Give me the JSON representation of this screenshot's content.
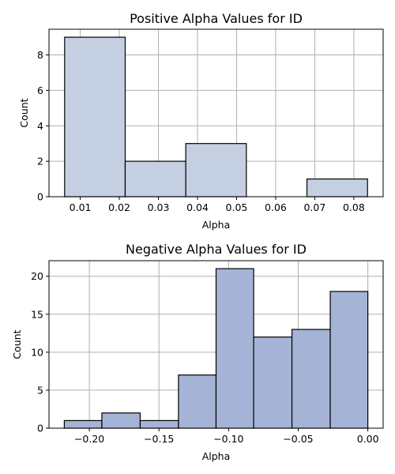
{
  "chart_data": [
    {
      "type": "bar",
      "title": "Positive Alpha Values for ID",
      "xlabel": "Alpha",
      "ylabel": "Count",
      "bin_edges": [
        0.006,
        0.0215,
        0.037,
        0.0525,
        0.068,
        0.0835
      ],
      "values": [
        9,
        2,
        3,
        0,
        1
      ],
      "xlim": [
        0.002,
        0.0875
      ],
      "ylim": [
        0,
        9.45
      ],
      "xticks": [
        0.01,
        0.02,
        0.03,
        0.04,
        0.05,
        0.06,
        0.07,
        0.08
      ],
      "xtick_labels": [
        "0.01",
        "0.02",
        "0.03",
        "0.04",
        "0.05",
        "0.06",
        "0.07",
        "0.08"
      ],
      "yticks": [
        0,
        2,
        4,
        6,
        8
      ],
      "ytick_labels": [
        "0",
        "2",
        "4",
        "6",
        "8"
      ],
      "grid": true,
      "bar_color": "#c5cfe2"
    },
    {
      "type": "bar",
      "title": "Negative Alpha Values for ID",
      "xlabel": "Alpha",
      "ylabel": "Count",
      "bin_edges": [
        -0.218,
        -0.191,
        -0.1635,
        -0.136,
        -0.109,
        -0.082,
        -0.0545,
        -0.027,
        0.0
      ],
      "values": [
        1,
        2,
        1,
        7,
        21,
        12,
        13,
        18
      ],
      "xlim": [
        -0.229,
        0.011
      ],
      "ylim": [
        0,
        22.05
      ],
      "xticks": [
        -0.2,
        -0.15,
        -0.1,
        -0.05,
        0.0
      ],
      "xtick_labels": [
        "−0.20",
        "−0.15",
        "−0.10",
        "−0.05",
        "0.00"
      ],
      "yticks": [
        0,
        5,
        10,
        15,
        20
      ],
      "ytick_labels": [
        "0",
        "5",
        "10",
        "15",
        "20"
      ],
      "grid": true,
      "bar_color": "#a5b3d6"
    }
  ]
}
